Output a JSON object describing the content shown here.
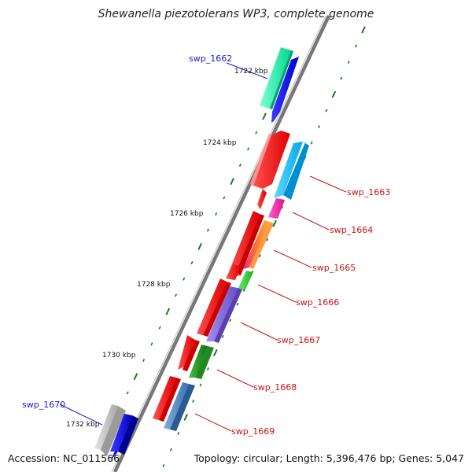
{
  "title": "Shewanella piezotolerans WP3, complete genome",
  "footer": {
    "accession": "Accession: NC_011566",
    "topology": "Topology: circular; Length: 5,396,476 bp; Genes: 5,047"
  },
  "ticks": [
    "1722 kbp",
    "1724 kbp",
    "1726 kbp",
    "1728 kbp",
    "1730 kbp",
    "1732 kbp"
  ],
  "genes": {
    "swp_1662": "swp_1662",
    "swp_1663": "swp_1663",
    "swp_1664": "swp_1664",
    "swp_1665": "swp_1665",
    "swp_1666": "swp_1666",
    "swp_1667": "swp_1667",
    "swp_1668": "swp_1668",
    "swp_1669": "swp_1669",
    "swp_1670": "swp_1670"
  },
  "colors": {
    "forward_cds": "#0000ee",
    "reverse_cds": "#ee0000",
    "label_forward": "#1a1acc",
    "label_reverse": "#cc1111",
    "tick": "#1a7a1a",
    "backbone": "#808080"
  }
}
